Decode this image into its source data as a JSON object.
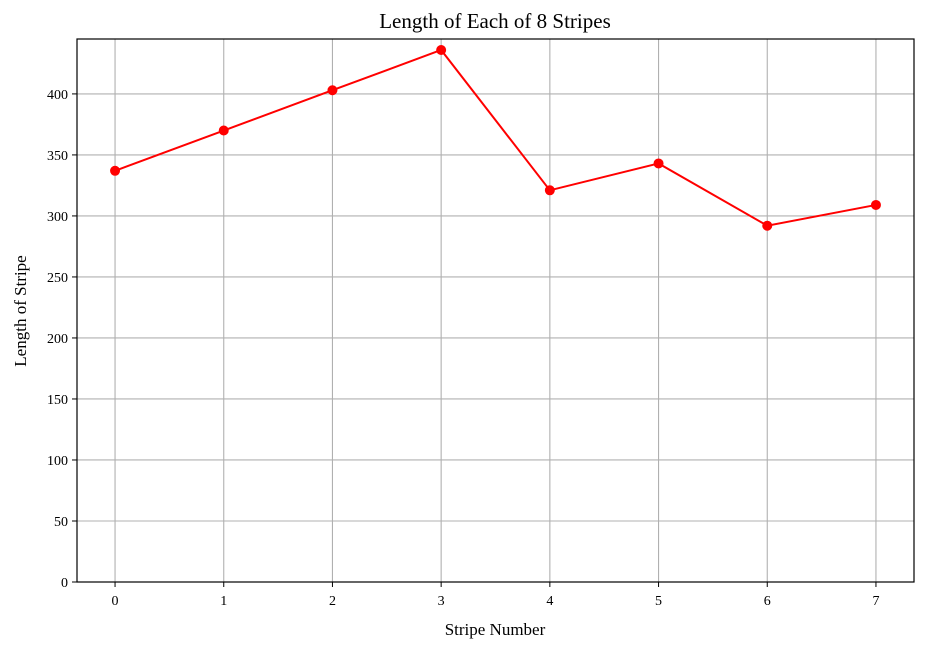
{
  "chart_data": {
    "type": "line",
    "title": "Length of Each of 8 Stripes",
    "xlabel": "Stripe Number",
    "ylabel": "Length of Stripe",
    "x": [
      0,
      1,
      2,
      3,
      4,
      5,
      6,
      7
    ],
    "series": [
      {
        "values": [
          337,
          370,
          403,
          436,
          321,
          343,
          292,
          309
        ],
        "color": "#ff0000",
        "marker": "circle"
      }
    ],
    "xlim": [
      -0.35,
      7.35
    ],
    "ylim": [
      0,
      445
    ],
    "xticks": [
      "0",
      "1",
      "2",
      "3",
      "4",
      "5",
      "6",
      "7"
    ],
    "yticks": [
      "0",
      "50",
      "100",
      "150",
      "200",
      "250",
      "300",
      "350",
      "400"
    ],
    "grid": true,
    "grid_color": "#b0b0b0"
  }
}
